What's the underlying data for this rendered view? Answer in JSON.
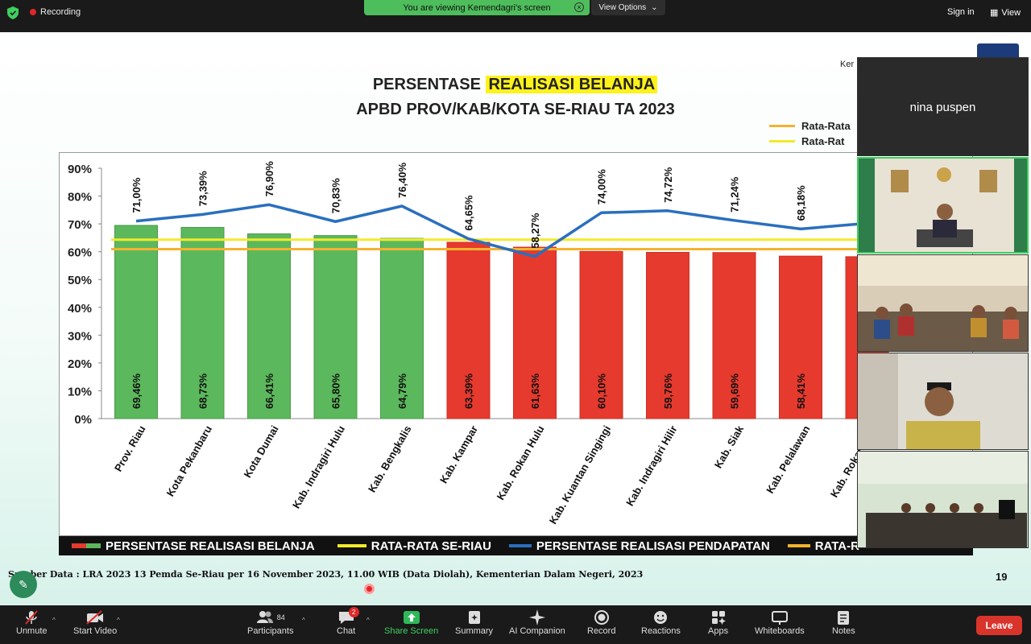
{
  "topbar": {
    "recording": "Recording",
    "viewing_banner": "You are viewing Kemendagri's screen",
    "view_options": "View Options",
    "signin": "Sign in",
    "view": "View"
  },
  "slide": {
    "header_right": "Ker",
    "title_prefix": "PERSENTASE",
    "title_highlight": "REALISASI BELANJA",
    "title_line2": "APBD PROV/KAB/KOTA SE-RIAU TA 2023",
    "mini_legend": [
      {
        "label": "Rata-Rata",
        "color": "#f5b22e"
      },
      {
        "label": "Rata-Rat",
        "color": "#f2ea2a"
      }
    ],
    "legend": {
      "belanja": "PERSENTASE REALISASI BELANJA",
      "rata_riau": "RATA-RATA SE-RIAU",
      "pendapatan": "PERSENTASE REALISASI PENDAPATAN",
      "rata_cut": "RATA-R"
    },
    "source": "Sumber Data : LRA 2023 13 Pemda Se-Riau per 16 November 2023, 11.00 WIB (Data Diolah), Kementerian Dalam Negeri, 2023",
    "page_number": "19"
  },
  "chart_data": {
    "type": "bar",
    "title": "PERSENTASE REALISASI BELANJA APBD PROV/KAB/KOTA SE-RIAU TA 2023",
    "categories": [
      "Prov. Riau",
      "Kota Pekanbaru",
      "Kota Dumai",
      "Kab. Indragiri Hulu",
      "Kab. Bengkalis",
      "Kab. Kampar",
      "Kab. Rokan Hulu",
      "Kab. Kuantan Singingi",
      "Kab. Indragiri Hilir",
      "Kab. Siak",
      "Kab. Pelalawan",
      "Kab. Rokan Hilir"
    ],
    "series": [
      {
        "name": "PERSENTASE REALISASI BELANJA",
        "type": "bar",
        "values": [
          69.46,
          68.73,
          66.41,
          65.8,
          64.79,
          63.39,
          61.63,
          60.1,
          59.76,
          59.69,
          58.41,
          58.2
        ],
        "labels": [
          "69,46%",
          "68,73%",
          "66,41%",
          "65,80%",
          "64,79%",
          "63,39%",
          "61,63%",
          "60,10%",
          "59,76%",
          "59,69%",
          "58,41%",
          ""
        ],
        "colors": [
          "#5cb85c",
          "#5cb85c",
          "#5cb85c",
          "#5cb85c",
          "#5cb85c",
          "#e63a2e",
          "#e63a2e",
          "#e63a2e",
          "#e63a2e",
          "#e63a2e",
          "#e63a2e",
          "#e63a2e"
        ]
      },
      {
        "name": "PERSENTASE REALISASI PENDAPATAN",
        "type": "line",
        "color": "#2a6fbf",
        "values": [
          71.0,
          73.39,
          76.9,
          70.83,
          76.4,
          64.65,
          58.27,
          74.0,
          74.72,
          71.24,
          68.18,
          70.2
        ],
        "labels": [
          "71,00%",
          "73,39%",
          "76,90%",
          "70,83%",
          "76,40%",
          "64,65%",
          "58,27%",
          "74,00%",
          "74,72%",
          "71,24%",
          "68,18%",
          ""
        ]
      },
      {
        "name": "RATA-RATA SE-RIAU",
        "type": "hline",
        "color": "#f2ea2a",
        "value": 64.3
      },
      {
        "name": "RATA-RATA",
        "type": "hline",
        "color": "#f5b22e",
        "value": 60.9
      }
    ],
    "yticks": [
      "90%",
      "80%",
      "70%",
      "60%",
      "50%",
      "40%",
      "30%",
      "20%",
      "10%",
      "0%"
    ],
    "ylim": [
      0,
      90
    ]
  },
  "tiles": [
    {
      "name": "nina puspen"
    }
  ],
  "toolbar": {
    "unmute": "Unmute",
    "start_video": "Start Video",
    "participants": "Participants",
    "participants_count": "84",
    "chat": "Chat",
    "chat_badge": "2",
    "share_screen": "Share Screen",
    "summary": "Summary",
    "ai_companion": "AI Companion",
    "record": "Record",
    "reactions": "Reactions",
    "apps": "Apps",
    "whiteboards": "Whiteboards",
    "notes": "Notes",
    "leave": "Leave"
  }
}
